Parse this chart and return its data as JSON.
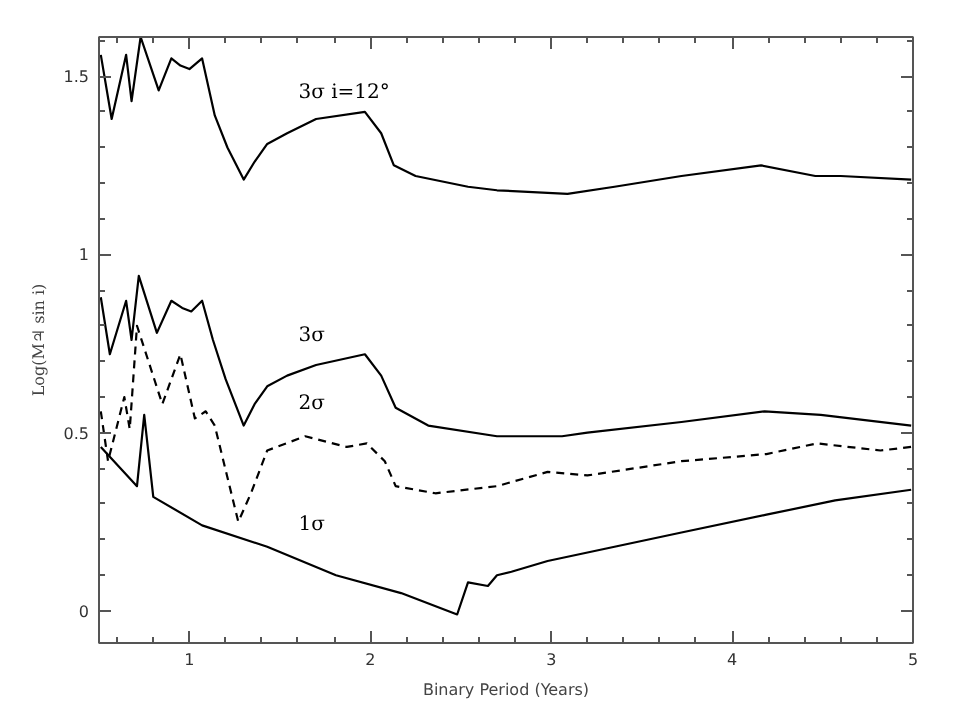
{
  "chart_data": {
    "type": "line",
    "xlabel": "Binary Period (Years)",
    "ylabel": "Log(M♃ sin i)",
    "xlim": [
      0.5,
      5
    ],
    "ylim": [
      -0.09,
      1.61
    ],
    "xticks": [
      1,
      2,
      3,
      4,
      5
    ],
    "yticks": [
      0,
      0.5,
      1,
      1.5
    ],
    "grid": false,
    "series": [
      {
        "name": "3σ  i=12°",
        "color": "#000000",
        "line_style": "solid",
        "x": [
          0.51,
          0.57,
          0.65,
          0.68,
          0.73,
          0.83,
          0.9,
          0.95,
          1.0,
          1.07,
          1.14,
          1.21,
          1.3,
          1.36,
          1.43,
          1.54,
          1.7,
          1.97,
          2.06,
          2.13,
          2.25,
          2.54,
          2.7,
          3.09,
          3.35,
          3.72,
          4.16,
          4.46,
          4.6,
          4.99
        ],
        "values": [
          1.56,
          1.38,
          1.56,
          1.43,
          1.61,
          1.46,
          1.55,
          1.53,
          1.52,
          1.55,
          1.39,
          1.3,
          1.21,
          1.26,
          1.31,
          1.34,
          1.38,
          1.4,
          1.34,
          1.25,
          1.22,
          1.19,
          1.18,
          1.17,
          1.19,
          1.22,
          1.25,
          1.22,
          1.22,
          1.21
        ]
      },
      {
        "name": "3σ",
        "color": "#000000",
        "line_style": "solid",
        "x": [
          0.51,
          0.56,
          0.65,
          0.68,
          0.72,
          0.82,
          0.9,
          0.96,
          1.01,
          1.07,
          1.13,
          1.2,
          1.3,
          1.36,
          1.43,
          1.54,
          1.7,
          1.97,
          2.06,
          2.14,
          2.32,
          2.7,
          3.06,
          3.2,
          3.72,
          4.18,
          4.49,
          4.99
        ],
        "values": [
          0.88,
          0.72,
          0.87,
          0.76,
          0.94,
          0.78,
          0.87,
          0.85,
          0.84,
          0.87,
          0.76,
          0.65,
          0.52,
          0.58,
          0.63,
          0.66,
          0.69,
          0.72,
          0.66,
          0.57,
          0.52,
          0.49,
          0.49,
          0.5,
          0.53,
          0.56,
          0.55,
          0.52
        ]
      },
      {
        "name": "2σ",
        "color": "#000000",
        "line_style": "dashed",
        "x": [
          0.51,
          0.55,
          0.64,
          0.67,
          0.71,
          0.85,
          0.95,
          1.03,
          1.09,
          1.14,
          1.27,
          1.34,
          1.43,
          1.64,
          1.87,
          1.98,
          2.08,
          2.14,
          2.36,
          2.7,
          2.98,
          3.2,
          3.72,
          4.19,
          4.47,
          4.82,
          4.99
        ],
        "values": [
          0.56,
          0.42,
          0.6,
          0.51,
          0.8,
          0.58,
          0.72,
          0.54,
          0.56,
          0.52,
          0.25,
          0.33,
          0.45,
          0.49,
          0.46,
          0.47,
          0.42,
          0.35,
          0.33,
          0.35,
          0.39,
          0.38,
          0.42,
          0.44,
          0.47,
          0.45,
          0.46
        ]
      },
      {
        "name": "1σ",
        "color": "#000000",
        "line_style": "solid",
        "x": [
          0.51,
          0.71,
          0.75,
          0.8,
          1.07,
          1.43,
          1.81,
          2.17,
          2.48,
          2.54,
          2.65,
          2.7,
          2.78,
          2.98,
          3.35,
          3.72,
          4.19,
          4.57,
          4.99
        ],
        "values": [
          0.46,
          0.35,
          0.55,
          0.32,
          0.24,
          0.18,
          0.1,
          0.05,
          -0.01,
          0.08,
          0.07,
          0.1,
          0.11,
          0.14,
          0.18,
          0.22,
          0.27,
          0.31,
          0.34
        ]
      }
    ]
  }
}
